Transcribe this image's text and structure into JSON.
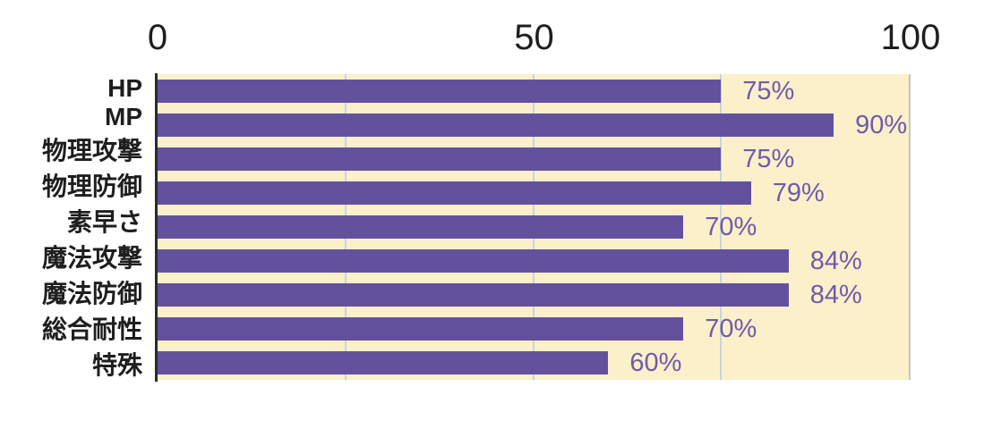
{
  "chart_data": {
    "type": "bar",
    "orientation": "horizontal",
    "title": "",
    "categories": [
      "HP",
      "MP",
      "物理攻撃",
      "物理防御",
      "素早さ",
      "魔法攻撃",
      "魔法防御",
      "総合耐性",
      "特殊"
    ],
    "values": [
      75,
      90,
      75,
      79,
      70,
      84,
      84,
      70,
      60
    ],
    "value_labels": [
      "75%",
      "90%",
      "75%",
      "79%",
      "70%",
      "84%",
      "84%",
      "70%",
      "60%"
    ],
    "x_axis": {
      "position": "top",
      "min": 0,
      "max": 100,
      "ticks": [
        0,
        50,
        100
      ],
      "tick_labels": [
        "0",
        "50",
        "100"
      ],
      "gridlines": [
        25,
        50,
        75
      ]
    },
    "y_axis": {
      "position": "left"
    },
    "legend": {
      "visible": false
    },
    "grid": "vertical-only",
    "colors": {
      "bar": "#64519E",
      "value_text": "#6F5BA8",
      "plot_background": "#FCF0CB",
      "gridline": "#C6D6DE",
      "plot_right_border": "#C2C4C6",
      "axis_line": "#2B2B2B",
      "tick_text": "#1E1E1E",
      "category_text": "#1E1E1E",
      "page_background": "#FFFFFF"
    }
  }
}
